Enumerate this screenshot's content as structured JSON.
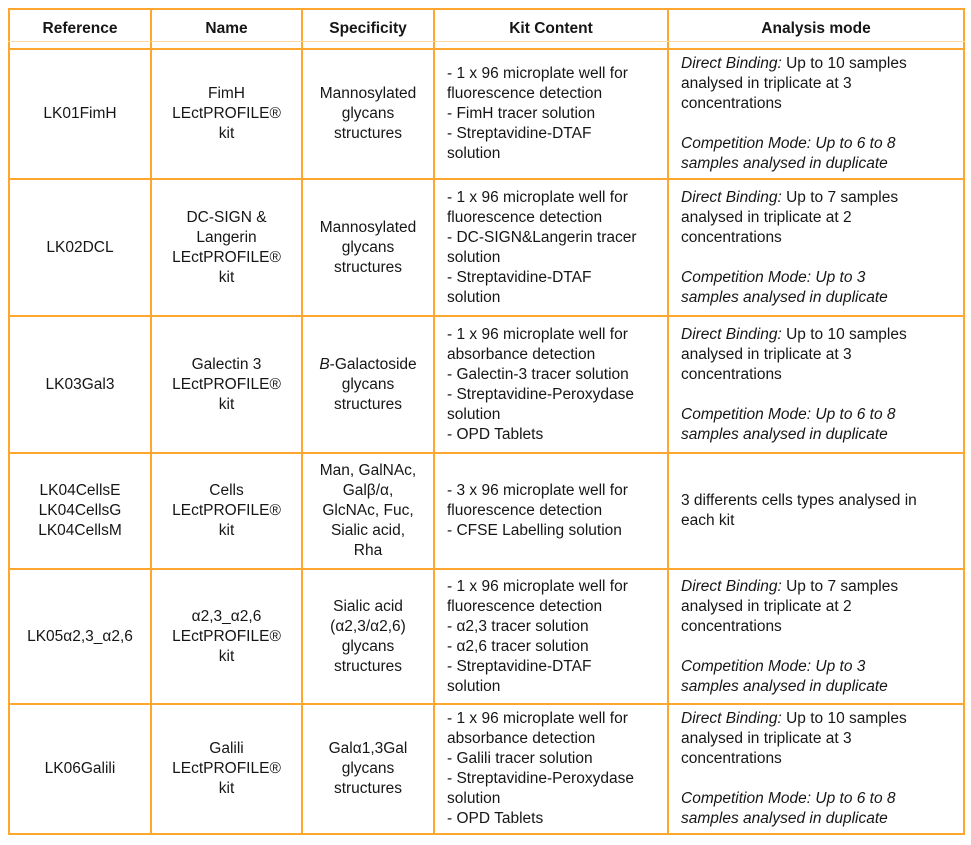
{
  "colors": {
    "border": "#FFA62E",
    "border-light": "#FFD9A0",
    "text": "#161616"
  },
  "table": {
    "headers": [
      "Reference",
      "Name",
      "Specificity",
      "Kit Content",
      "Analysis mode"
    ],
    "rows": [
      {
        "reference": "LK01FimH",
        "name": "FimH\nLEctPROFILE®\nkit",
        "specificity": [
          {
            "segments": [
              {
                "text": "Mannosylated\nglycans\nstructures"
              }
            ]
          }
        ],
        "kit_content": "- 1 x 96 microplate well for\nfluorescence detection\n- FimH tracer solution\n- Streptavidine-DTAF\nsolution",
        "analysis": [
          {
            "segments": [
              {
                "text": "Direct Binding:",
                "italic": true
              },
              {
                "text": " Up to 10 samples\nanalysed in triplicate at 3\nconcentrations"
              }
            ]
          },
          {
            "segments": [
              {
                "text": "Competition Mode: Up to 6 to 8\nsamples analysed in duplicate",
                "italic": true
              }
            ]
          }
        ]
      },
      {
        "reference": "LK02DCL",
        "name": "DC-SIGN &\nLangerin\nLEctPROFILE®\nkit",
        "specificity": [
          {
            "segments": [
              {
                "text": "Mannosylated\nglycans\nstructures"
              }
            ]
          }
        ],
        "kit_content": "- 1 x 96 microplate well for\nfluorescence detection\n- DC-SIGN&Langerin tracer\nsolution\n- Streptavidine-DTAF\nsolution",
        "analysis": [
          {
            "segments": [
              {
                "text": "Direct Binding:",
                "italic": true
              },
              {
                "text": " Up to 7 samples\nanalysed in triplicate at 2\nconcentrations"
              }
            ]
          },
          {
            "segments": [
              {
                "text": "Competition Mode: Up to 3\nsamples analysed in duplicate",
                "italic": true
              }
            ]
          }
        ]
      },
      {
        "reference": "LK03Gal3",
        "name": "Galectin 3\nLEctPROFILE®\nkit",
        "specificity": [
          {
            "segments": [
              {
                "text": "B",
                "italic": true
              },
              {
                "text": "-Galactoside\nglycans\nstructures"
              }
            ]
          }
        ],
        "kit_content": "- 1 x 96 microplate well for\nabsorbance detection\n- Galectin-3 tracer solution\n- Streptavidine-Peroxydase\nsolution\n- OPD Tablets",
        "analysis": [
          {
            "segments": [
              {
                "text": "Direct Binding:",
                "italic": true
              },
              {
                "text": " Up to 10 samples\nanalysed in triplicate at 3\nconcentrations"
              }
            ]
          },
          {
            "segments": [
              {
                "text": "Competition Mode: Up to 6 to 8\nsamples analysed in duplicate",
                "italic": true
              }
            ]
          }
        ]
      },
      {
        "reference": "LK04CellsE\nLK04CellsG\nLK04CellsM",
        "name": "Cells\nLEctPROFILE®\nkit",
        "specificity": [
          {
            "segments": [
              {
                "text": "Man, GalNAc,\nGalβ/α,\nGlcNAc, Fuc,\nSialic acid,\nRha"
              }
            ]
          }
        ],
        "kit_content": "- 3 x 96 microplate well for\nfluorescence detection\n- CFSE Labelling solution",
        "analysis": [
          {
            "segments": [
              {
                "text": "3 differents cells types analysed in\neach kit"
              }
            ]
          }
        ]
      },
      {
        "reference": "LK05α2,3_α2,6",
        "name": "α2,3_α2,6\nLEctPROFILE®\nkit",
        "specificity": [
          {
            "segments": [
              {
                "text": "Sialic acid\n(α2,3/α2,6)\nglycans\nstructures"
              }
            ]
          }
        ],
        "kit_content": "- 1 x 96 microplate well for\nfluorescence detection\n- α2,3 tracer solution\n- α2,6 tracer solution\n- Streptavidine-DTAF\nsolution",
        "analysis": [
          {
            "segments": [
              {
                "text": "Direct Binding:",
                "italic": true
              },
              {
                "text": " Up to 7 samples\nanalysed in triplicate at 2\nconcentrations"
              }
            ]
          },
          {
            "segments": [
              {
                "text": "Competition Mode: Up to 3\nsamples analysed in duplicate",
                "italic": true
              }
            ]
          }
        ]
      },
      {
        "reference": "LK06Galili",
        "name": "Galili\nLEctPROFILE®\nkit",
        "specificity": [
          {
            "segments": [
              {
                "text": "Galα1,3Gal\nglycans\nstructures"
              }
            ]
          }
        ],
        "kit_content": "- 1 x 96 microplate well for\nabsorbance detection\n- Galili tracer solution\n- Streptavidine-Peroxydase\nsolution\n- OPD Tablets",
        "analysis": [
          {
            "segments": [
              {
                "text": "Direct Binding:",
                "italic": true
              },
              {
                "text": " Up to 10 samples\nanalysed in triplicate at 3\nconcentrations"
              }
            ]
          },
          {
            "segments": [
              {
                "text": "Competition Mode: Up to 6 to 8\nsamples analysed in duplicate",
                "italic": true
              }
            ]
          }
        ]
      }
    ]
  }
}
